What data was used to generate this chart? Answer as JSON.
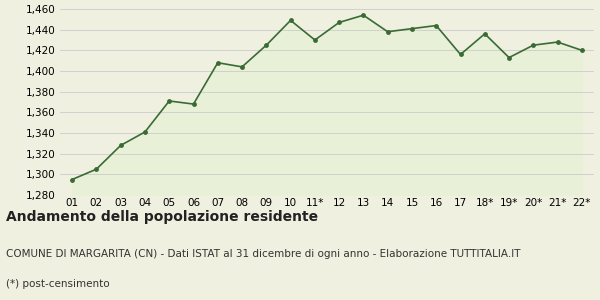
{
  "x_labels": [
    "01",
    "02",
    "03",
    "04",
    "05",
    "06",
    "07",
    "08",
    "09",
    "10",
    "11*",
    "12",
    "13",
    "14",
    "15",
    "16",
    "17",
    "18*",
    "19*",
    "20*",
    "21*",
    "22*"
  ],
  "y_values": [
    1295,
    1305,
    1328,
    1341,
    1371,
    1368,
    1408,
    1404,
    1425,
    1449,
    1430,
    1447,
    1454,
    1438,
    1441,
    1444,
    1416,
    1436,
    1413,
    1425,
    1428,
    1420
  ],
  "ylim": [
    1280,
    1460
  ],
  "yticks": [
    1280,
    1300,
    1320,
    1340,
    1360,
    1380,
    1400,
    1420,
    1440,
    1460
  ],
  "line_color": "#3a6b35",
  "fill_color": "#e8f0d8",
  "marker_color": "#3a6b35",
  "background_color": "#f0f0e0",
  "grid_color": "#cccccc",
  "title": "Andamento della popolazione residente",
  "subtitle": "COMUNE DI MARGARITA (CN) - Dati ISTAT al 31 dicembre di ogni anno - Elaborazione TUTTITALIA.IT",
  "footnote": "(*) post-censimento",
  "title_fontsize": 10,
  "subtitle_fontsize": 7.5,
  "footnote_fontsize": 7.5,
  "tick_fontsize": 7.5
}
